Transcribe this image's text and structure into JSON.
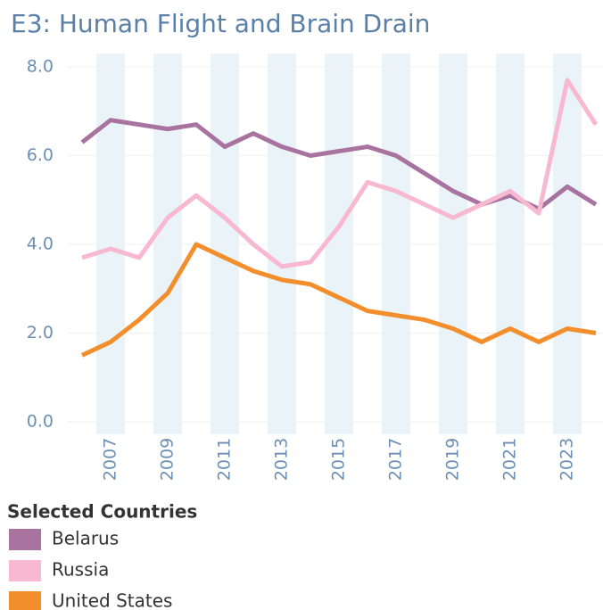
{
  "chart_data": {
    "type": "line",
    "title": "E3: Human Flight and Brain Drain",
    "x": [
      2006,
      2007,
      2008,
      2009,
      2010,
      2011,
      2012,
      2013,
      2014,
      2015,
      2016,
      2017,
      2018,
      2019,
      2020,
      2021,
      2022,
      2023,
      2024
    ],
    "series": [
      {
        "name": "Belarus",
        "color": "#a8739f",
        "values": [
          6.3,
          6.8,
          6.7,
          6.6,
          6.7,
          6.2,
          6.5,
          6.2,
          6.0,
          6.1,
          6.2,
          6.0,
          5.6,
          5.2,
          4.9,
          5.1,
          4.8,
          5.3,
          4.9
        ]
      },
      {
        "name": "Russia",
        "color": "#f7b8d0",
        "values": [
          3.7,
          3.9,
          3.7,
          4.6,
          5.1,
          4.6,
          4.0,
          3.5,
          3.6,
          4.4,
          5.4,
          5.2,
          4.9,
          4.6,
          4.9,
          5.2,
          4.7,
          7.7,
          6.7
        ]
      },
      {
        "name": "United States",
        "color": "#f28e2b",
        "values": [
          1.5,
          1.8,
          2.3,
          2.9,
          4.0,
          3.7,
          3.4,
          3.2,
          3.1,
          2.8,
          2.5,
          2.4,
          2.3,
          2.1,
          1.8,
          2.1,
          1.8,
          2.1,
          2.0
        ]
      }
    ],
    "xlim": [
      2005.5,
      2024.25
    ],
    "xticks": [
      2007,
      2009,
      2011,
      2013,
      2015,
      2017,
      2019,
      2021,
      2023
    ],
    "ylim": [
      0,
      8
    ],
    "yticks": [
      {
        "value": 0,
        "label": "0.0"
      },
      {
        "value": 2,
        "label": "2.0"
      },
      {
        "value": 4,
        "label": "4.0"
      },
      {
        "value": 6,
        "label": "6.0"
      },
      {
        "value": 8,
        "label": "8.0"
      }
    ],
    "legend_title": "Selected Countries",
    "grid": true
  }
}
